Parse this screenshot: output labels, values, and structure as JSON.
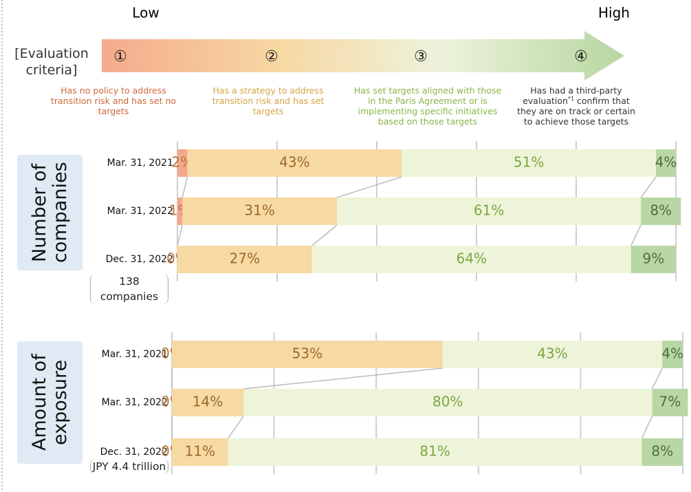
{
  "header": {
    "low": "Low",
    "high": "High",
    "criteria_label": "[Evaluation criteria]"
  },
  "criteria": [
    {
      "symbol": "①",
      "description": "Has no policy to address transition risk and has set no targets",
      "color": "#d0663a"
    },
    {
      "symbol": "②",
      "description": "Has a strategy to address transition risk and has set targets",
      "color": "#d6a340"
    },
    {
      "symbol": "③",
      "description": "Has set targets aligned with those in the Paris Agreement or is implementing specific initiatives based on those targets",
      "color": "#88b548"
    },
    {
      "symbol": "④",
      "description": "Has had a third-party evaluation",
      "note_mark": "*1",
      "description_end": " confirm that they are on track or certain to achieve those targets",
      "color": "#333333"
    }
  ],
  "chart_data": [
    {
      "type": "stacked_barh",
      "title": "Number of companies",
      "note": "138 companies",
      "categories": [
        "Mar. 31, 2021",
        "Mar. 31, 2022",
        "Dec. 31, 2022"
      ],
      "xlim": [
        0,
        100
      ],
      "xticks": [
        0,
        20,
        40,
        60,
        80,
        100
      ],
      "series": [
        {
          "color": "#f4a88b",
          "label_color": "#b8733a",
          "values": [
            2,
            1,
            0
          ],
          "value_labels": [
            "2%",
            "1%",
            "0%"
          ]
        },
        {
          "color": "#f7d9a3",
          "label_color": "#9a6a2a",
          "values": [
            43,
            31,
            27
          ],
          "value_labels": [
            "43%",
            "31%",
            "27%"
          ]
        },
        {
          "color": "#eef4da",
          "label_color": "#7ba640",
          "values": [
            51,
            61,
            64
          ],
          "value_labels": [
            "51%",
            "61%",
            "64%"
          ]
        },
        {
          "color": "#b9d7a4",
          "label_color": "#4d6d3a",
          "values": [
            4,
            8,
            9
          ],
          "value_labels": [
            "4%",
            "8%",
            "9%"
          ]
        }
      ]
    },
    {
      "type": "stacked_barh",
      "title": "Amount of exposure",
      "note": "JPY 4.4 trillion",
      "categories": [
        "Mar. 31, 2021",
        "Mar. 31, 2022",
        "Dec. 31, 2022"
      ],
      "xlim": [
        0,
        100
      ],
      "xticks": [
        0,
        20,
        40,
        60,
        80,
        100
      ],
      "series": [
        {
          "color": "#f4a88b",
          "label_color": "#b8733a",
          "values": [
            0,
            0,
            0
          ],
          "value_labels": [
            "0%",
            "0%",
            "0%"
          ]
        },
        {
          "color": "#f7d9a3",
          "label_color": "#9a6a2a",
          "values": [
            53,
            14,
            11
          ],
          "value_labels": [
            "53%",
            "14%",
            "11%"
          ]
        },
        {
          "color": "#eef4da",
          "label_color": "#7ba640",
          "values": [
            43,
            80,
            81
          ],
          "value_labels": [
            "43%",
            "80%",
            "81%"
          ]
        },
        {
          "color": "#b9d7a4",
          "label_color": "#4d6d3a",
          "values": [
            4,
            7,
            8
          ],
          "value_labels": [
            "4%",
            "7%",
            "8%"
          ]
        }
      ]
    }
  ]
}
